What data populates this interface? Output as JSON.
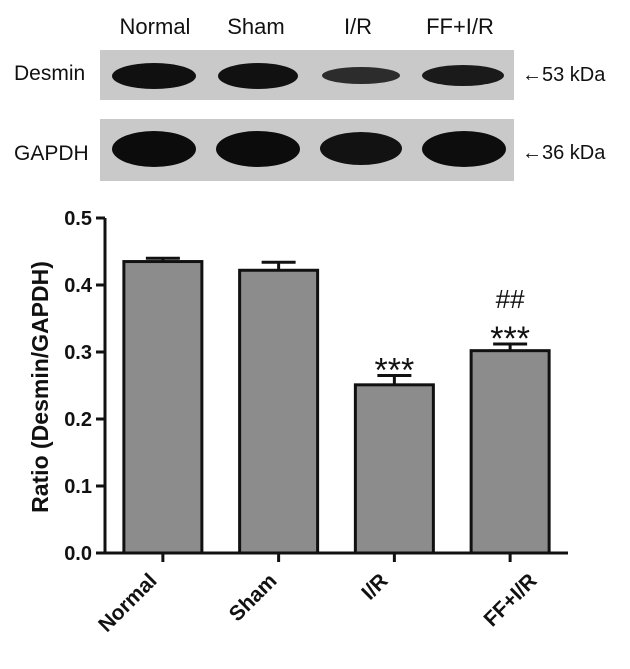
{
  "blot": {
    "lanes": [
      "Normal",
      "Sham",
      "I/R",
      "FF+I/R"
    ],
    "rows": [
      {
        "label": "Desmin",
        "marker": "←53 kDa",
        "band_intensity": [
          0.95,
          0.93,
          0.55,
          0.8
        ]
      },
      {
        "label": "GAPDH",
        "marker": "←36 kDa",
        "band_intensity": [
          1.0,
          1.0,
          0.92,
          0.98
        ]
      }
    ]
  },
  "chart_data": {
    "type": "bar",
    "categories": [
      "Normal",
      "Sham",
      "I/R",
      "FF+I/R"
    ],
    "values": [
      0.435,
      0.422,
      0.251,
      0.302
    ],
    "errors": [
      0.005,
      0.012,
      0.014,
      0.01
    ],
    "annotations": [
      {
        "category": "I/R",
        "lines": [
          "***"
        ]
      },
      {
        "category": "FF+I/R",
        "lines": [
          "##",
          "***"
        ]
      }
    ],
    "title": "",
    "xlabel": "",
    "ylabel": "Ratio (Desmin/GAPDH)",
    "ylim": [
      0.0,
      0.5
    ],
    "yticks": [
      "0.0",
      "0.1",
      "0.2",
      "0.3",
      "0.4",
      "0.5"
    ],
    "bar_color": "#8c8c8c",
    "grid": false
  }
}
